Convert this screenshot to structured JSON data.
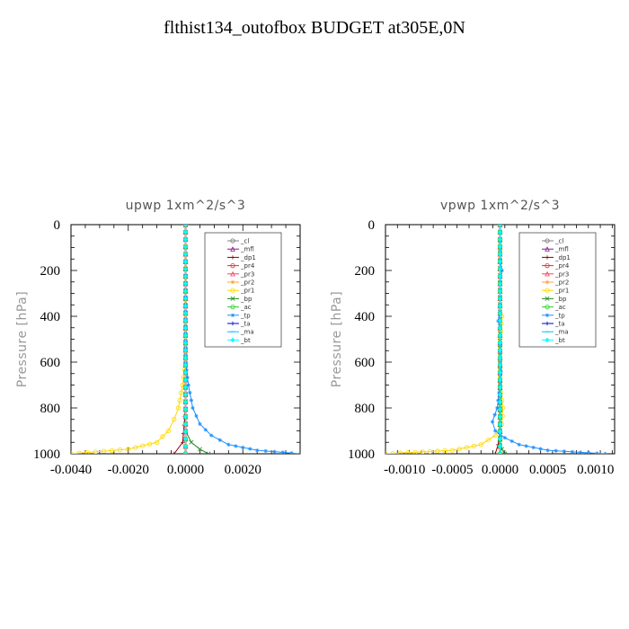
{
  "title": "flthist134_outofbox  BUDGET at305E,0N",
  "chart_data": [
    {
      "type": "line",
      "title": "upwp   1xm^2/s^3",
      "ylabel": "Pressure  [hPa]",
      "xlim": [
        -0.004,
        0.004
      ],
      "ylim": [
        1000,
        0
      ],
      "xticks": [
        -0.004,
        -0.002,
        0.0,
        0.002
      ],
      "xtick_labels": [
        "-0.0040",
        "-0.0020",
        "0.0000",
        "0.0020"
      ],
      "yticks": [
        0,
        200,
        400,
        600,
        800,
        1000
      ],
      "ytick_labels": [
        "0",
        "200",
        "400",
        "600",
        "800",
        "1000"
      ],
      "legend": "top-right",
      "series": [
        {
          "name": "_cl",
          "color": "#808080",
          "marker": "circle",
          "values": [
            [
              0,
              0
            ],
            [
              0,
              1000
            ]
          ]
        },
        {
          "name": "_mfl",
          "color": "#8b1a89",
          "marker": "triangle",
          "values": [
            [
              0,
              0
            ],
            [
              0,
              1000
            ]
          ]
        },
        {
          "name": "_dp1",
          "color": "#8b0000",
          "marker": "plus",
          "values": [
            [
              0,
              0
            ],
            [
              0,
              800
            ],
            [
              -0.0001,
              950
            ],
            [
              -0.0004,
              1000
            ]
          ]
        },
        {
          "name": "_pr4",
          "color": "#e03030",
          "marker": "circle",
          "values": [
            [
              0,
              0
            ],
            [
              0,
              1000
            ]
          ]
        },
        {
          "name": "_pr3",
          "color": "#ff4060",
          "marker": "triangle",
          "values": [
            [
              0,
              0
            ],
            [
              0,
              1000
            ]
          ]
        },
        {
          "name": "_pr2",
          "color": "#ffa040",
          "marker": "star",
          "values": [
            [
              0,
              0
            ],
            [
              0,
              1000
            ]
          ]
        },
        {
          "name": "_pr1",
          "color": "#ffd700",
          "marker": "circle",
          "values": [
            [
              0,
              0
            ],
            [
              0,
              600
            ],
            [
              -0.0001,
              700
            ],
            [
              -0.00025,
              800
            ],
            [
              -0.0004,
              850
            ],
            [
              -0.0006,
              900
            ],
            [
              -0.001,
              950
            ],
            [
              -0.002,
              980
            ],
            [
              -0.004,
              1000
            ]
          ]
        },
        {
          "name": "_bp",
          "color": "#228b22",
          "marker": "cross",
          "values": [
            [
              0,
              0
            ],
            [
              0,
              900
            ],
            [
              0.0002,
              950
            ],
            [
              0.0005,
              980
            ],
            [
              0.0008,
              1000
            ]
          ]
        },
        {
          "name": "_ac",
          "color": "#32cd32",
          "marker": "circle",
          "values": [
            [
              0,
              0
            ],
            [
              0,
              1000
            ]
          ]
        },
        {
          "name": "_tp",
          "color": "#1e90ff",
          "marker": "star",
          "values": [
            [
              0,
              0
            ],
            [
              0,
              600
            ],
            [
              0.0001,
              700
            ],
            [
              0.00025,
              800
            ],
            [
              0.0005,
              870
            ],
            [
              0.0009,
              920
            ],
            [
              0.0015,
              960
            ],
            [
              0.0025,
              985
            ],
            [
              0.004,
              1000
            ]
          ]
        },
        {
          "name": "_ta",
          "color": "#0000cd",
          "marker": "plus",
          "values": [
            [
              0,
              0
            ],
            [
              0,
              1000
            ]
          ]
        },
        {
          "name": "_ma",
          "color": "#00bfff",
          "marker": "dash",
          "values": [
            [
              0,
              0
            ],
            [
              0,
              1000
            ]
          ]
        },
        {
          "name": "_bt",
          "color": "#00ffff",
          "marker": "diamond",
          "values": [
            [
              0,
              0
            ],
            [
              0,
              1000
            ]
          ]
        }
      ]
    },
    {
      "type": "line",
      "title": "vpwp   1xm^2/s^3",
      "ylabel": "Pressure  [hPa]",
      "xlim": [
        -0.0012,
        0.0012
      ],
      "ylim": [
        1000,
        0
      ],
      "xticks": [
        -0.001,
        -0.0005,
        0.0,
        0.0005,
        0.001
      ],
      "xtick_labels": [
        "-0.0010",
        "-0.0005",
        "0.0000",
        "0.0005",
        "0.0010"
      ],
      "yticks": [
        0,
        200,
        400,
        600,
        800,
        1000
      ],
      "ytick_labels": [
        "0",
        "200",
        "400",
        "600",
        "800",
        "1000"
      ],
      "legend": "top-right",
      "series": [
        {
          "name": "_cl",
          "color": "#808080",
          "marker": "circle",
          "values": [
            [
              0,
              0
            ],
            [
              0,
              1000
            ]
          ]
        },
        {
          "name": "_mfl",
          "color": "#8b1a89",
          "marker": "triangle",
          "values": [
            [
              0,
              0
            ],
            [
              0,
              1000
            ]
          ]
        },
        {
          "name": "_dp1",
          "color": "#8b0000",
          "marker": "plus",
          "values": [
            [
              0,
              0
            ],
            [
              0,
              900
            ],
            [
              -2e-05,
              960
            ],
            [
              -5e-05,
              1000
            ]
          ]
        },
        {
          "name": "_pr4",
          "color": "#e03030",
          "marker": "circle",
          "values": [
            [
              0,
              0
            ],
            [
              0,
              1000
            ]
          ]
        },
        {
          "name": "_pr3",
          "color": "#ff4060",
          "marker": "triangle",
          "values": [
            [
              0,
              0
            ],
            [
              0,
              1000
            ]
          ]
        },
        {
          "name": "_pr2",
          "color": "#ffa040",
          "marker": "star",
          "values": [
            [
              0,
              0
            ],
            [
              0,
              1000
            ]
          ]
        },
        {
          "name": "_pr1",
          "color": "#ffd700",
          "marker": "circle",
          "values": [
            [
              0,
              0
            ],
            [
              0,
              150
            ],
            [
              1e-05,
              200
            ],
            [
              0,
              250
            ],
            [
              0,
              350
            ],
            [
              2e-05,
              400
            ],
            [
              0,
              500
            ],
            [
              0,
              700
            ],
            [
              3e-05,
              800
            ],
            [
              2e-05,
              870
            ],
            [
              -5e-05,
              920
            ],
            [
              -0.0002,
              960
            ],
            [
              -0.0005,
              985
            ],
            [
              -0.0012,
              1000
            ]
          ]
        },
        {
          "name": "_bp",
          "color": "#228b22",
          "marker": "cross",
          "values": [
            [
              0,
              0
            ],
            [
              0,
              950
            ],
            [
              2e-05,
              980
            ],
            [
              5e-05,
              1000
            ]
          ]
        },
        {
          "name": "_ac",
          "color": "#32cd32",
          "marker": "circle",
          "values": [
            [
              0,
              0
            ],
            [
              0,
              1000
            ]
          ]
        },
        {
          "name": "_tp",
          "color": "#1e90ff",
          "marker": "star",
          "values": [
            [
              0,
              0
            ],
            [
              0,
              150
            ],
            [
              2e-05,
              200
            ],
            [
              0,
              250
            ],
            [
              0,
              380
            ],
            [
              -2e-05,
              420
            ],
            [
              0,
              450
            ],
            [
              0,
              600
            ],
            [
              1e-05,
              640
            ],
            [
              0,
              700
            ],
            [
              -3e-05,
              800
            ],
            [
              -8e-05,
              860
            ],
            [
              -5e-05,
              900
            ],
            [
              5e-05,
              930
            ],
            [
              0.0002,
              960
            ],
            [
              0.0005,
              985
            ],
            [
              0.0011,
              1000
            ]
          ]
        },
        {
          "name": "_ta",
          "color": "#0000cd",
          "marker": "plus",
          "values": [
            [
              0,
              0
            ],
            [
              0,
              1000
            ]
          ]
        },
        {
          "name": "_ma",
          "color": "#00bfff",
          "marker": "dash",
          "values": [
            [
              0,
              0
            ],
            [
              0,
              1000
            ]
          ]
        },
        {
          "name": "_bt",
          "color": "#00ffff",
          "marker": "diamond",
          "values": [
            [
              0,
              0
            ],
            [
              0,
              1000
            ]
          ]
        }
      ]
    }
  ]
}
